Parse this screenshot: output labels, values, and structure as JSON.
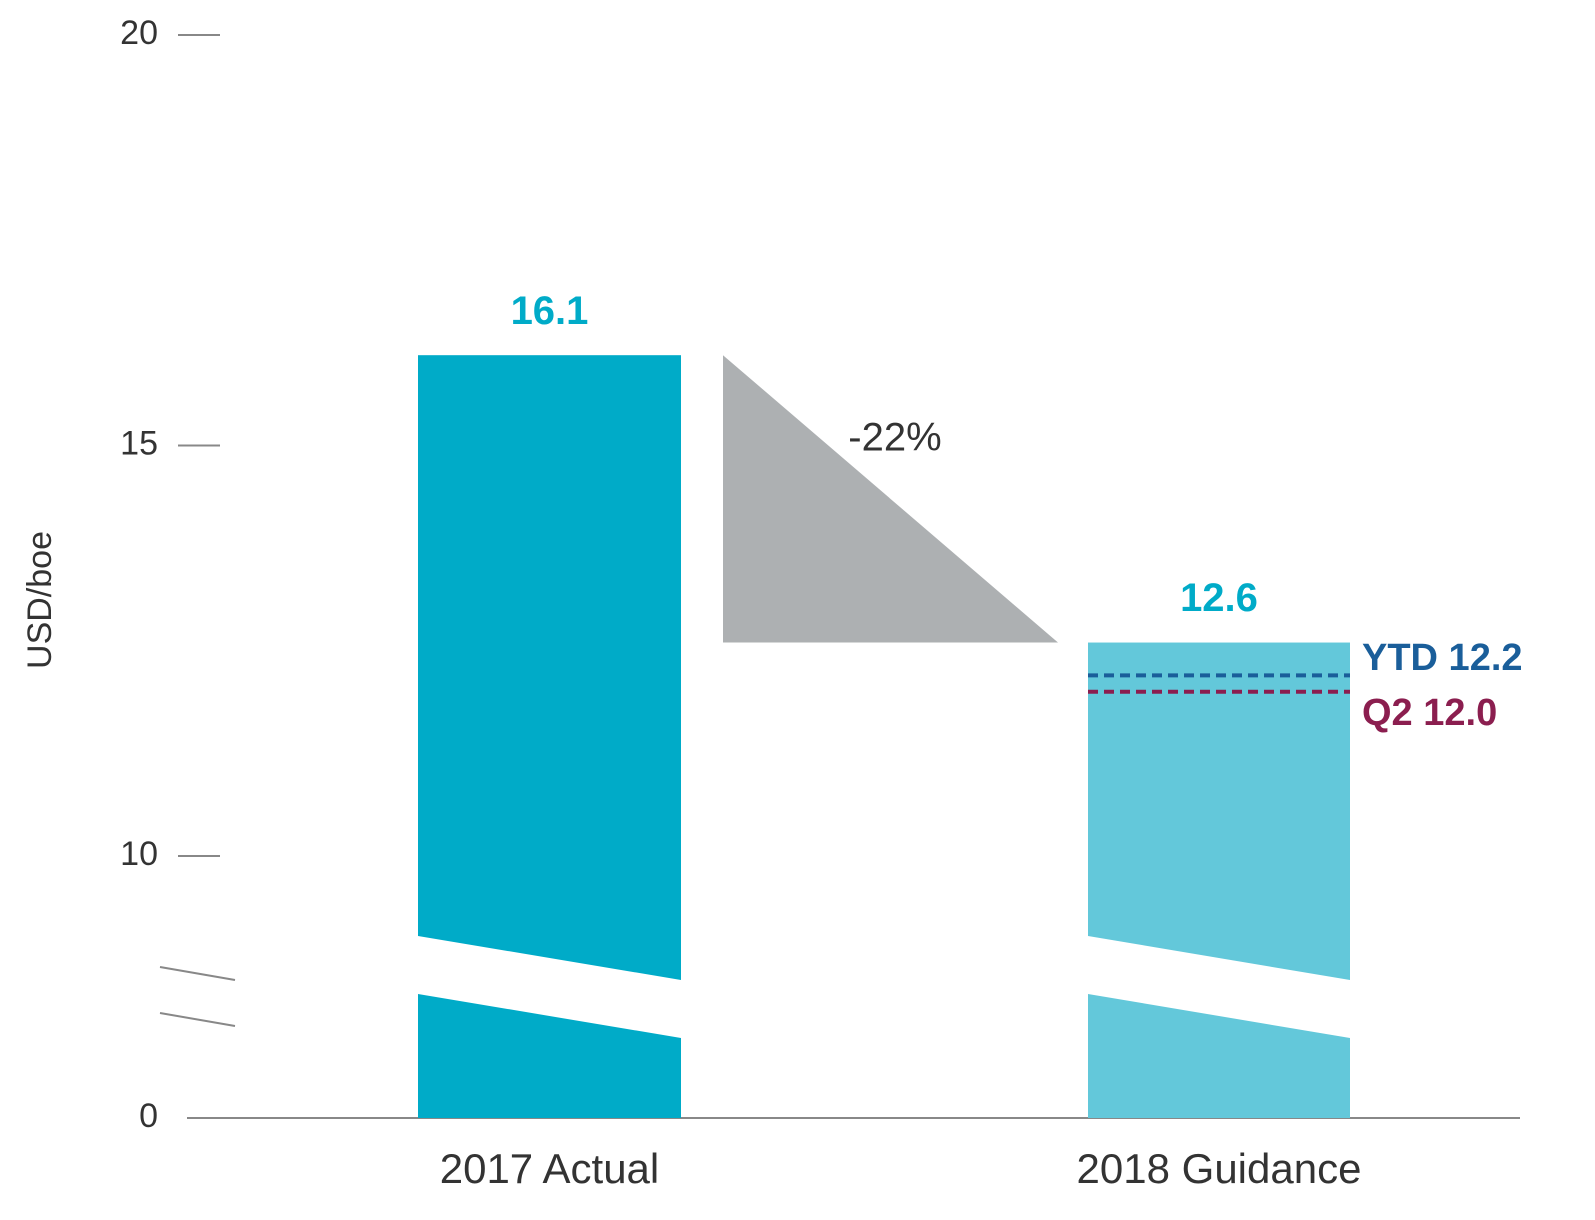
{
  "chart_data": {
    "type": "bar",
    "y_label": "USD/boe",
    "categories": [
      "2017 Actual",
      "2018 Guidance"
    ],
    "series": [
      {
        "name": null,
        "colors": [
          "#00abc8",
          "#63c8da"
        ],
        "values": [
          16.1,
          12.6
        ]
      }
    ],
    "ylim": [
      0,
      20
    ],
    "yticks": [
      0,
      10,
      15,
      20
    ],
    "axis_break": true,
    "change": {
      "label": "-22%",
      "color": "#adb0b2"
    },
    "reference_lines": [
      {
        "label": "YTD 12.2",
        "value": 12.2,
        "color": "#1a5e9a"
      },
      {
        "label": "Q2 12.0",
        "value": 12.0,
        "color": "#8b1e4f"
      }
    ]
  }
}
